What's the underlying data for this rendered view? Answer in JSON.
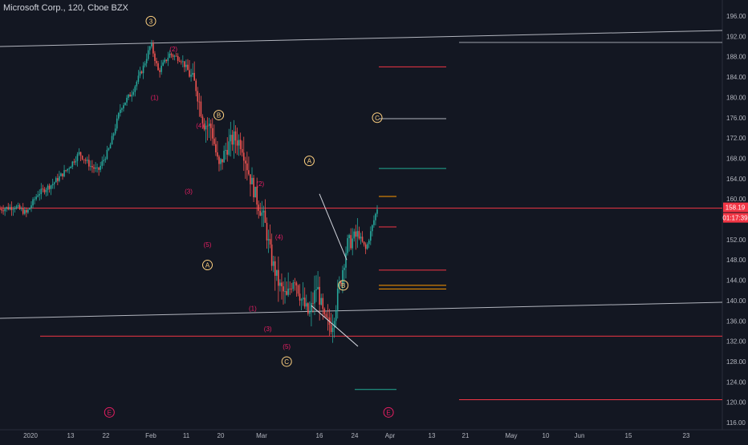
{
  "symbol": {
    "title": "Microsoft Corp., 120, Cboe BZX"
  },
  "price_axis": {
    "last_price_label": "158.19",
    "countdown_label": "01:17:39"
  },
  "colors": {
    "background": "#131722",
    "axis_text": "#b2b5be",
    "up_candle": "#26a69a",
    "down_candle": "#ef5350",
    "trendline": "#b2b5be",
    "red_level": "#f23645",
    "green_level": "#22ab94",
    "orange_level": "#ff9800",
    "wave_orange": "#ffd180",
    "wave_red": "#e91e63",
    "price_badge": "#f23645"
  },
  "chart_data": {
    "type": "candlestick",
    "title": "Microsoft Corp., 120, Cboe BZX",
    "xlabel": "",
    "ylabel": "",
    "ylim": [
      114,
      198
    ],
    "y_ticks": [
      116,
      120,
      124,
      128,
      132,
      136,
      140,
      144,
      148,
      152,
      156,
      160,
      164,
      168,
      172,
      176,
      180,
      184,
      188,
      192,
      196
    ],
    "x_ticks": [
      "2020",
      "13",
      "22",
      "Feb",
      "11",
      "20",
      "Mar",
      "16",
      "24",
      "Apr",
      "13",
      "21",
      "May",
      "10",
      "Jun",
      "15",
      "23"
    ],
    "grid": false,
    "last_price": 158.19,
    "price_path": [
      {
        "t": 0,
        "p": 158.0
      },
      {
        "t": 0.04,
        "p": 158.5
      },
      {
        "t": 0.07,
        "p": 157.2
      },
      {
        "t": 0.1,
        "p": 161.0
      },
      {
        "t": 0.14,
        "p": 163.0
      },
      {
        "t": 0.18,
        "p": 166.0
      },
      {
        "t": 0.21,
        "p": 169.0
      },
      {
        "t": 0.24,
        "p": 166.5
      },
      {
        "t": 0.26,
        "p": 165.5
      },
      {
        "t": 0.29,
        "p": 170.0
      },
      {
        "t": 0.32,
        "p": 178.0
      },
      {
        "t": 0.35,
        "p": 181.0
      },
      {
        "t": 0.38,
        "p": 186.0
      },
      {
        "t": 0.4,
        "p": 190.5
      },
      {
        "t": 0.42,
        "p": 185.0
      },
      {
        "t": 0.45,
        "p": 188.5
      },
      {
        "t": 0.48,
        "p": 187.5
      },
      {
        "t": 0.5,
        "p": 185.0
      },
      {
        "t": 0.52,
        "p": 182.0
      },
      {
        "t": 0.54,
        "p": 175.0
      },
      {
        "t": 0.56,
        "p": 174.0
      },
      {
        "t": 0.58,
        "p": 166.0
      },
      {
        "t": 0.6,
        "p": 170.0
      },
      {
        "t": 0.62,
        "p": 172.0
      },
      {
        "t": 0.64,
        "p": 171.0
      },
      {
        "t": 0.66,
        "p": 165.0
      },
      {
        "t": 0.68,
        "p": 160.0
      },
      {
        "t": 0.7,
        "p": 156.0
      },
      {
        "t": 0.72,
        "p": 148.0
      },
      {
        "t": 0.74,
        "p": 143.0
      },
      {
        "t": 0.76,
        "p": 140.5
      },
      {
        "t": 0.78,
        "p": 145.0
      },
      {
        "t": 0.8,
        "p": 140.0
      },
      {
        "t": 0.82,
        "p": 137.0
      },
      {
        "t": 0.84,
        "p": 143.0
      },
      {
        "t": 0.86,
        "p": 136.0
      },
      {
        "t": 0.88,
        "p": 135.0
      },
      {
        "t": 0.9,
        "p": 143.0
      },
      {
        "t": 0.92,
        "p": 151.0
      },
      {
        "t": 0.95,
        "p": 153.0
      },
      {
        "t": 0.97,
        "p": 150.0
      },
      {
        "t": 1.0,
        "p": 158.19
      }
    ],
    "horizontal_levels": [
      {
        "price": 158.19,
        "color": "red",
        "full_width": true
      },
      {
        "price": 133.0,
        "color": "red",
        "full_width": false
      },
      {
        "price": 120.5,
        "color": "red",
        "full_width": false
      },
      {
        "price": 186.0,
        "color": "red",
        "full_width": false
      },
      {
        "price": 166.0,
        "color": "green",
        "full_width": false
      },
      {
        "price": 175.8,
        "color": "grey",
        "full_width": false
      },
      {
        "price": 160.5,
        "color": "orange",
        "full_width": false
      },
      {
        "price": 143.0,
        "color": "orange",
        "full_width": false
      },
      {
        "price": 154.5,
        "color": "red",
        "full_width": false
      },
      {
        "price": 146.0,
        "color": "red",
        "full_width": false
      },
      {
        "price": 122.5,
        "color": "green",
        "full_width": false
      }
    ],
    "wave_labels": [
      {
        "text": "3",
        "style": "circle-orange",
        "t": 0.4,
        "price": 195.0
      },
      {
        "text": "(2)",
        "style": "red",
        "t": 0.46,
        "price": 189.5
      },
      {
        "text": "(1)",
        "style": "red",
        "t": 0.41,
        "price": 180.0
      },
      {
        "text": "(4)",
        "style": "red",
        "t": 0.53,
        "price": 174.5
      },
      {
        "text": "(3)",
        "style": "red",
        "t": 0.5,
        "price": 161.5
      },
      {
        "text": "(5)",
        "style": "red",
        "t": 0.55,
        "price": 151.0
      },
      {
        "text": "A",
        "style": "circle-orange",
        "t": 0.55,
        "price": 147.0
      },
      {
        "text": "B",
        "style": "circle-orange",
        "t": 0.58,
        "price": 176.5
      },
      {
        "text": "(2)",
        "style": "red",
        "t": 0.69,
        "price": 163.0
      },
      {
        "text": "(4)",
        "style": "red",
        "t": 0.74,
        "price": 152.5
      },
      {
        "text": "(1)",
        "style": "red",
        "t": 0.67,
        "price": 138.5
      },
      {
        "text": "(3)",
        "style": "red",
        "t": 0.71,
        "price": 134.5
      },
      {
        "text": "(5)",
        "style": "red",
        "t": 0.76,
        "price": 131.0
      },
      {
        "text": "C",
        "style": "circle-orange",
        "t": 0.76,
        "price": 128.0
      },
      {
        "text": "A",
        "style": "circle-orange",
        "t": 0.82,
        "price": 167.5
      },
      {
        "text": "B",
        "style": "circle-orange",
        "t": 0.91,
        "price": 143.0
      },
      {
        "text": "C",
        "style": "circle-orange",
        "t": 1.0,
        "price": 176.0
      },
      {
        "text": "E",
        "style": "circle-red",
        "t": 0.29,
        "price": 118.0
      },
      {
        "text": "E",
        "style": "circle-red",
        "t": 1.03,
        "price": 118.0
      }
    ]
  }
}
